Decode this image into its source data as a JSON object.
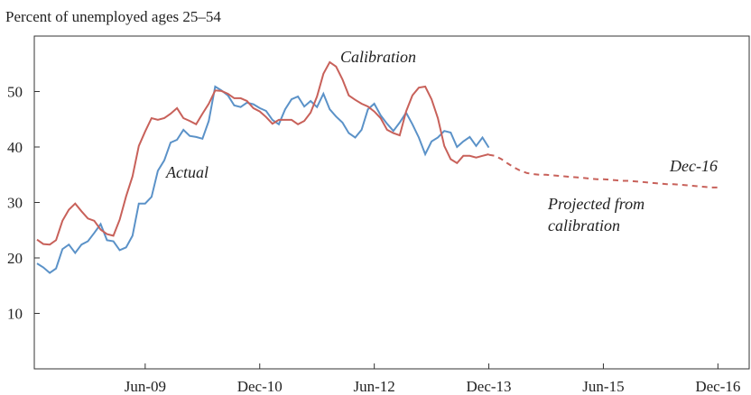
{
  "chart_data": {
    "type": "line",
    "y_label": "Percent of unemployed ages 25–54",
    "x": [
      "Jan-08",
      "Feb-08",
      "Mar-08",
      "Apr-08",
      "May-08",
      "Jun-08",
      "Jul-08",
      "Aug-08",
      "Sep-08",
      "Oct-08",
      "Nov-08",
      "Dec-08",
      "Jan-09",
      "Feb-09",
      "Mar-09",
      "Apr-09",
      "May-09",
      "Jun-09",
      "Jul-09",
      "Aug-09",
      "Sep-09",
      "Oct-09",
      "Nov-09",
      "Dec-09",
      "Jan-10",
      "Feb-10",
      "Mar-10",
      "Apr-10",
      "May-10",
      "Jun-10",
      "Jul-10",
      "Aug-10",
      "Sep-10",
      "Oct-10",
      "Nov-10",
      "Dec-10",
      "Jan-11",
      "Feb-11",
      "Mar-11",
      "Apr-11",
      "May-11",
      "Jun-11",
      "Jul-11",
      "Aug-11",
      "Sep-11",
      "Oct-11",
      "Nov-11",
      "Dec-11",
      "Jan-12",
      "Feb-12",
      "Mar-12",
      "Apr-12",
      "May-12",
      "Jun-12",
      "Jul-12",
      "Aug-12",
      "Sep-12",
      "Oct-12",
      "Nov-12",
      "Dec-12",
      "Jan-13",
      "Feb-13",
      "Mar-13",
      "Apr-13",
      "May-13",
      "Jun-13",
      "Jul-13",
      "Aug-13",
      "Sep-13",
      "Oct-13",
      "Nov-13",
      "Dec-13",
      "Jan-14",
      "Feb-14",
      "Mar-14",
      "Apr-14",
      "May-14",
      "Jun-14",
      "Jul-14",
      "Aug-14",
      "Sep-14",
      "Oct-14",
      "Nov-14",
      "Dec-14",
      "Jan-15",
      "Feb-15",
      "Mar-15",
      "Apr-15",
      "May-15",
      "Jun-15",
      "Jul-15",
      "Aug-15",
      "Sep-15",
      "Oct-15",
      "Nov-15",
      "Dec-15",
      "Jan-16",
      "Feb-16",
      "Mar-16",
      "Apr-16",
      "May-16",
      "Jun-16",
      "Jul-16",
      "Aug-16",
      "Sep-16",
      "Oct-16",
      "Nov-16",
      "Dec-16"
    ],
    "xticks": [
      "Jun-09",
      "Dec-10",
      "Jun-12",
      "Dec-13",
      "Jun-15",
      "Dec-16"
    ],
    "ylim": [
      0,
      60
    ],
    "yticks": [
      10,
      20,
      30,
      40,
      50
    ],
    "series": [
      {
        "name": "Actual",
        "color": "#5b92c8",
        "style": "solid",
        "values": [
          19.0,
          18.3,
          17.3,
          18.1,
          21.6,
          22.4,
          20.9,
          22.4,
          23.0,
          24.5,
          26.1,
          23.2,
          23.0,
          21.4,
          21.9,
          24.0,
          29.8,
          29.8,
          31.0,
          35.7,
          37.6,
          40.8,
          41.3,
          43.1,
          42.0,
          41.8,
          41.5,
          44.7,
          50.9,
          50.2,
          49.3,
          47.5,
          47.2,
          48.0,
          47.7,
          47.0,
          46.5,
          44.9,
          44.1,
          46.8,
          48.6,
          49.1,
          47.3,
          48.3,
          47.2,
          49.6,
          46.8,
          45.5,
          44.4,
          42.5,
          41.7,
          43.1,
          46.8,
          47.8,
          45.7,
          44.2,
          42.9,
          44.4,
          46.2,
          44.1,
          41.7,
          38.7,
          41.0,
          41.7,
          42.9,
          42.6,
          40.0,
          41.0,
          41.8,
          40.2,
          41.7,
          39.9,
          null,
          null,
          null,
          null,
          null,
          null,
          null,
          null,
          null,
          null,
          null,
          null,
          null,
          null,
          null,
          null,
          null,
          null,
          null,
          null,
          null,
          null,
          null,
          null,
          null,
          null,
          null,
          null,
          null,
          null,
          null,
          null,
          null,
          null,
          null,
          null
        ]
      },
      {
        "name": "Calibration",
        "color": "#c8615a",
        "style": "solid",
        "values": [
          23.3,
          22.5,
          22.4,
          23.2,
          26.7,
          28.7,
          29.8,
          28.4,
          27.1,
          26.7,
          25.1,
          24.3,
          24.0,
          26.9,
          31.1,
          34.7,
          40.2,
          42.8,
          45.2,
          44.9,
          45.2,
          46.0,
          47.0,
          45.2,
          44.7,
          44.1,
          46.0,
          47.8,
          50.2,
          50.1,
          49.6,
          48.8,
          48.8,
          48.3,
          47.0,
          46.4,
          45.4,
          44.2,
          44.9,
          44.9,
          44.9,
          44.1,
          44.7,
          46.2,
          49.1,
          53.2,
          55.3,
          54.5,
          52.2,
          49.3,
          48.5,
          47.8,
          47.3,
          46.4,
          45.2,
          43.1,
          42.5,
          42.1,
          46.4,
          49.3,
          50.7,
          50.9,
          48.6,
          45.2,
          40.2,
          37.8,
          37.1,
          38.4,
          38.4,
          38.1,
          38.4,
          38.7,
          null,
          null,
          null,
          null,
          null,
          null,
          null,
          null,
          null,
          null,
          null,
          null,
          null,
          null,
          null,
          null,
          null,
          null,
          null,
          null,
          null,
          null,
          null,
          null,
          null,
          null,
          null,
          null,
          null,
          null,
          null,
          null,
          null,
          null,
          null,
          null
        ]
      },
      {
        "color": "#c8615a",
        "style": "dashed",
        "values": [
          null,
          null,
          null,
          null,
          null,
          null,
          null,
          null,
          null,
          null,
          null,
          null,
          null,
          null,
          null,
          null,
          null,
          null,
          null,
          null,
          null,
          null,
          null,
          null,
          null,
          null,
          null,
          null,
          null,
          null,
          null,
          null,
          null,
          null,
          null,
          null,
          null,
          null,
          null,
          null,
          null,
          null,
          null,
          null,
          null,
          null,
          null,
          null,
          null,
          null,
          null,
          null,
          null,
          null,
          null,
          null,
          null,
          null,
          null,
          null,
          null,
          null,
          null,
          null,
          null,
          null,
          null,
          null,
          null,
          null,
          null,
          38.6,
          38.4,
          37.8,
          37.0,
          36.3,
          35.7,
          35.3,
          35.1,
          35.0,
          35.0,
          34.9,
          34.8,
          34.7,
          34.6,
          34.5,
          34.4,
          34.3,
          34.2,
          34.2,
          34.1,
          34.0,
          33.9,
          33.9,
          33.8,
          33.7,
          33.6,
          33.5,
          33.4,
          33.3,
          33.3,
          33.2,
          33.1,
          33.0,
          32.9,
          32.8,
          32.7,
          32.7
        ]
      }
    ],
    "annotations": [
      "Projected from",
      "calibration",
      "Dec-16"
    ]
  }
}
